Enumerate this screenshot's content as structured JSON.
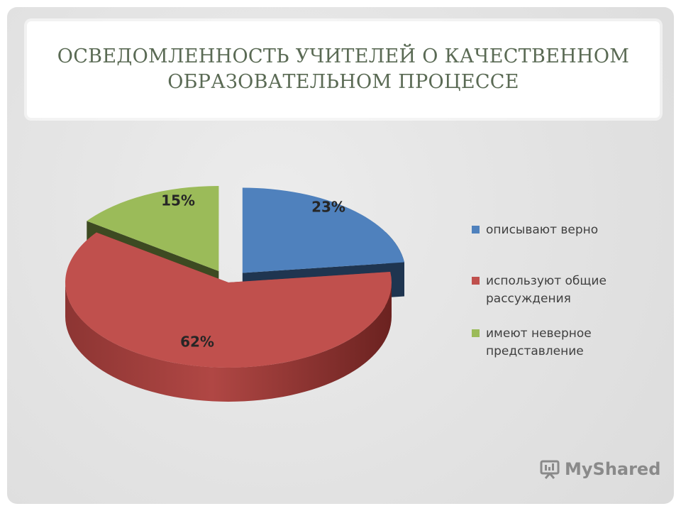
{
  "title": "Осведомленность учителей о качественном образовательном процессе",
  "chart_data": {
    "type": "pie",
    "title": "",
    "categories": [
      "описывают верно",
      "используют общие рассуждения",
      "имеют неверное представление"
    ],
    "values": [
      23,
      62,
      15
    ],
    "labels": [
      "23%",
      "62%",
      "15%"
    ],
    "colors": [
      "#4f81bd",
      "#c0504d",
      "#9bbb59"
    ],
    "exploded": [
      true,
      false,
      true
    ],
    "legend_position": "right"
  },
  "watermark": {
    "text": "MyShared",
    "icon": "presentation-board-icon"
  }
}
